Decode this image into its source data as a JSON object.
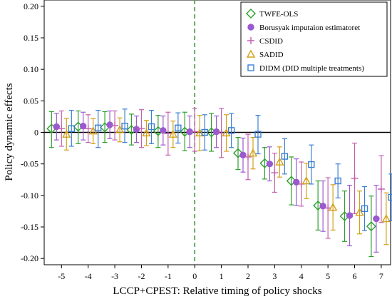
{
  "chart_data": {
    "type": "scatter",
    "xlabel": "LCCP+CPEST: Relative timing of policy shocks",
    "ylabel": "Policy dynamic effects",
    "x": [
      -5,
      -4,
      -3,
      -2,
      -1,
      0,
      1,
      2,
      3,
      4,
      5,
      6,
      7
    ],
    "xticks": [
      "-5",
      "-4",
      "-3",
      "-2",
      "-1",
      "0",
      "1",
      "2",
      "3",
      "4",
      "5",
      "6",
      "7"
    ],
    "xlim": [
      -5.65,
      7.35
    ],
    "ylim": [
      -0.21,
      0.21
    ],
    "yticks": [
      "0.20",
      "0.15",
      "0.10",
      "0.05",
      "0",
      "-0.05",
      "-0.10",
      "-0.15",
      "-0.20"
    ],
    "ytick_values": [
      0.2,
      0.15,
      0.1,
      0.05,
      0,
      -0.05,
      -0.1,
      -0.15,
      -0.2
    ],
    "zero_line": true,
    "event_line_x": 0,
    "grid": false,
    "legend_position": "top-right",
    "series": [
      {
        "name": "TWFE-OLS",
        "marker": "diamond",
        "color": "#2ca02c",
        "values": [
          0.006,
          0.009,
          0.008,
          0.004,
          0.002,
          0.001,
          0.0,
          -0.033,
          -0.049,
          -0.077,
          -0.116,
          -0.133,
          -0.149
        ],
        "lower": [
          -0.024,
          -0.018,
          -0.016,
          -0.02,
          -0.024,
          -0.029,
          -0.03,
          -0.059,
          -0.074,
          -0.115,
          -0.155,
          -0.173,
          -0.197
        ],
        "upper": [
          0.033,
          0.034,
          0.033,
          0.029,
          0.027,
          0.032,
          0.03,
          -0.008,
          -0.024,
          -0.039,
          -0.077,
          -0.093,
          -0.101
        ]
      },
      {
        "name": "Borusyak imputaion estimatoret",
        "marker": "circle",
        "color": "#9b59d0",
        "values": [
          0.009,
          0.01,
          0.012,
          0.005,
          0.003,
          0.001,
          0.001,
          -0.036,
          -0.05,
          -0.079,
          -0.117,
          -0.132,
          -0.137
        ],
        "lower": [
          -0.012,
          -0.012,
          -0.01,
          -0.016,
          -0.02,
          -0.024,
          -0.024,
          -0.063,
          -0.077,
          -0.116,
          -0.157,
          -0.18,
          -0.19
        ],
        "upper": [
          0.03,
          0.032,
          0.034,
          0.026,
          0.026,
          0.026,
          0.026,
          -0.009,
          -0.023,
          -0.042,
          -0.077,
          -0.084,
          -0.084
        ]
      },
      {
        "name": "CSDID",
        "marker": "plus",
        "color": "#c45fae",
        "values": [
          0.006,
          0.006,
          0.011,
          0.006,
          -0.002,
          0.001,
          -0.001,
          -0.039,
          -0.064,
          -0.082,
          -0.12,
          -0.073,
          -0.09
        ],
        "lower": [
          -0.022,
          -0.016,
          -0.012,
          -0.024,
          -0.036,
          -0.03,
          -0.04,
          -0.075,
          -0.095,
          -0.117,
          -0.168,
          -0.129,
          -0.143
        ],
        "upper": [
          0.034,
          0.028,
          0.034,
          0.036,
          0.032,
          0.038,
          0.038,
          -0.003,
          -0.033,
          -0.047,
          -0.072,
          -0.017,
          -0.037
        ]
      },
      {
        "name": "SADID",
        "marker": "triangle",
        "color": "#d4a017",
        "values": [
          -0.003,
          0.002,
          0.004,
          -0.001,
          -0.003,
          -0.001,
          -0.001,
          -0.033,
          -0.047,
          -0.077,
          -0.119,
          -0.127,
          -0.137
        ],
        "lower": [
          -0.028,
          -0.018,
          -0.015,
          -0.021,
          -0.024,
          -0.029,
          -0.03,
          -0.058,
          -0.071,
          -0.105,
          -0.155,
          -0.161,
          -0.178
        ],
        "upper": [
          0.022,
          0.022,
          0.023,
          0.019,
          0.018,
          0.027,
          0.028,
          -0.008,
          -0.023,
          -0.049,
          -0.083,
          -0.093,
          -0.096
        ]
      },
      {
        "name": "DIDM (DID multiple treatments)",
        "marker": "square",
        "color": "#3a7fd5",
        "values": [
          0.006,
          0.007,
          0.01,
          0.009,
          0.007,
          0.0,
          0.003,
          -0.003,
          -0.038,
          -0.051,
          -0.077,
          -0.121,
          -0.103
        ],
        "lower": [
          -0.022,
          -0.024,
          -0.016,
          -0.018,
          -0.017,
          -0.028,
          -0.024,
          -0.034,
          -0.066,
          -0.082,
          -0.104,
          -0.156,
          -0.14
        ],
        "upper": [
          0.035,
          0.035,
          0.037,
          0.035,
          0.031,
          0.028,
          0.03,
          0.027,
          -0.01,
          -0.02,
          -0.05,
          -0.086,
          -0.066
        ]
      }
    ]
  }
}
